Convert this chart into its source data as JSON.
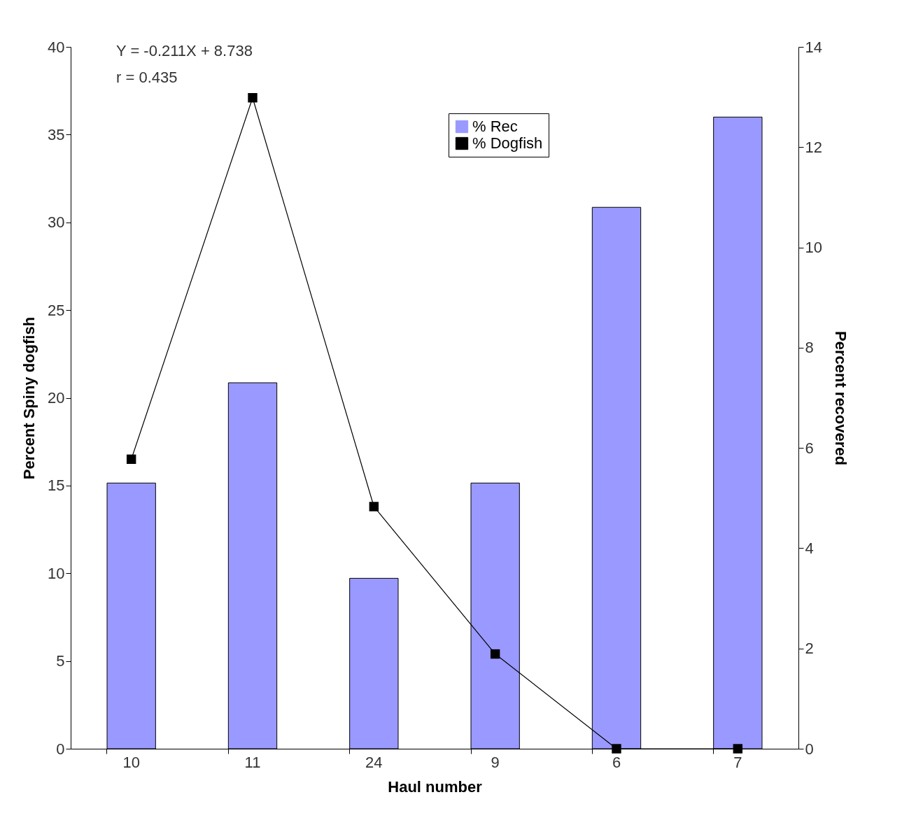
{
  "chart_data": {
    "type": "bar",
    "xlabel": "Haul number",
    "ylabel": "Percent Spiny dogfish",
    "y2label": "Percent recovered",
    "categories": [
      "10",
      "11",
      "24",
      "9",
      "6",
      "7"
    ],
    "series": [
      {
        "name": "% Rec",
        "axis": "y2",
        "color": "#9999ff",
        "values": [
          5.3,
          7.3,
          3.4,
          5.3,
          10.8,
          12.6
        ]
      },
      {
        "name": "% Dogfish",
        "type": "line",
        "color": "#000000",
        "values": [
          16.5,
          37.1,
          13.8,
          5.4,
          0,
          0
        ]
      }
    ],
    "ylim": [
      0,
      40
    ],
    "yticks": [
      0,
      5,
      10,
      15,
      20,
      25,
      30,
      35,
      40
    ],
    "y2lim": [
      0,
      14
    ],
    "y2ticks": [
      0,
      2,
      4,
      6,
      8,
      10,
      12,
      14
    ],
    "annotations": [
      "Y = -0.211X + 8.738",
      "r = 0.435"
    ],
    "grid": false,
    "legend": "top right",
    "marker": "square",
    "line_style": "solid"
  }
}
